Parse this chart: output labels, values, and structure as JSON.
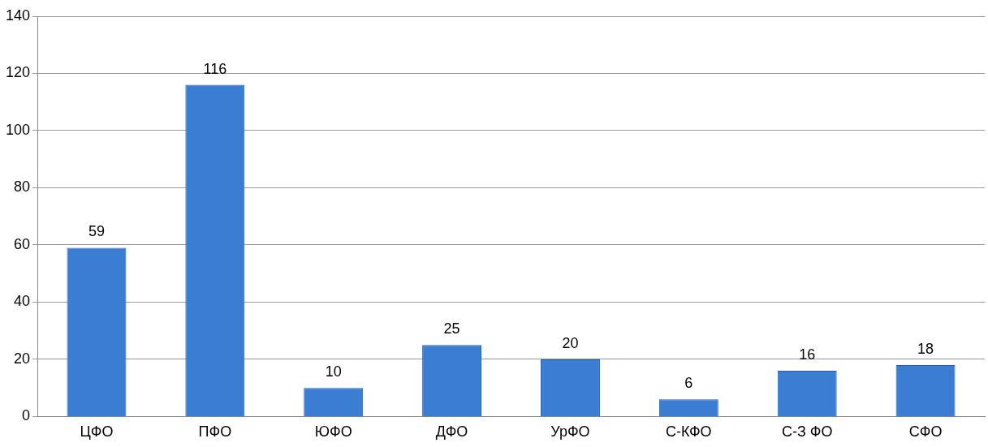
{
  "chart_data": {
    "type": "bar",
    "categories": [
      "ЦФО",
      "ПФО",
      "ЮФО",
      "ДФО",
      "УрФО",
      "С-КФО",
      "С-З ФО",
      "СФО"
    ],
    "values": [
      59,
      116,
      10,
      25,
      20,
      6,
      16,
      18
    ],
    "color": "#3b7dd3",
    "ylim": [
      0,
      140
    ],
    "yticks": [
      0,
      20,
      40,
      60,
      80,
      100,
      120,
      140
    ],
    "grid": "y",
    "data_labels": true
  }
}
